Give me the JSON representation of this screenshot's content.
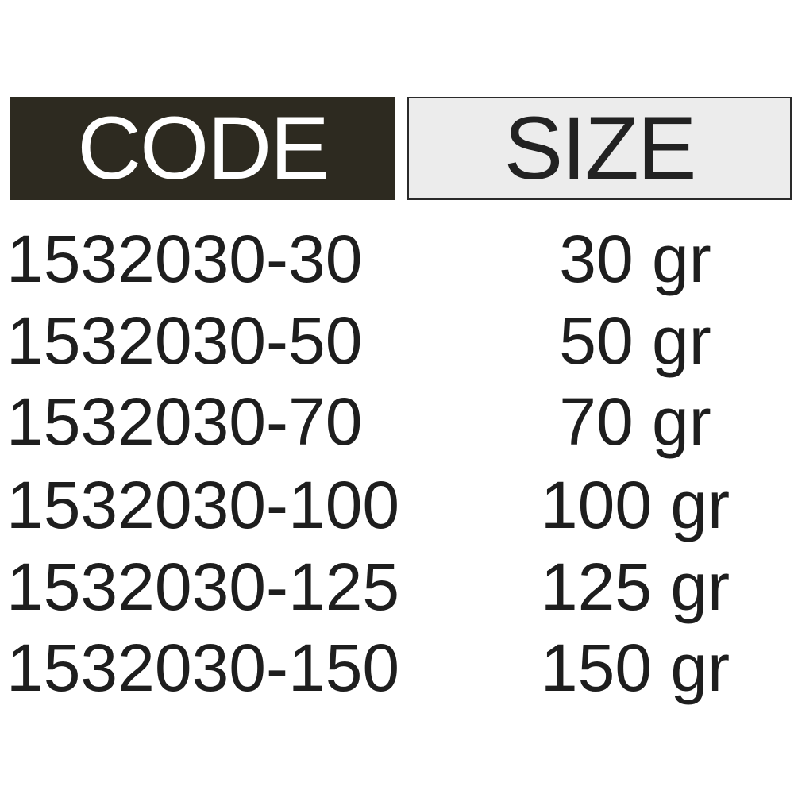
{
  "table": {
    "headers": {
      "code": "CODE",
      "size": "SIZE"
    },
    "header_colors": {
      "code_bg": "#2d2a20",
      "size_bg": "#ececec"
    },
    "rows": [
      {
        "code": "1532030-30",
        "size": "30 gr"
      },
      {
        "code": "1532030-50",
        "size": "50 gr"
      },
      {
        "code": "1532030-70",
        "size": "70 gr"
      },
      {
        "code": "1532030-100",
        "size": "100 gr"
      },
      {
        "code": "1532030-125",
        "size": "125 gr"
      },
      {
        "code": "1532030-150",
        "size": "150 gr"
      }
    ]
  }
}
